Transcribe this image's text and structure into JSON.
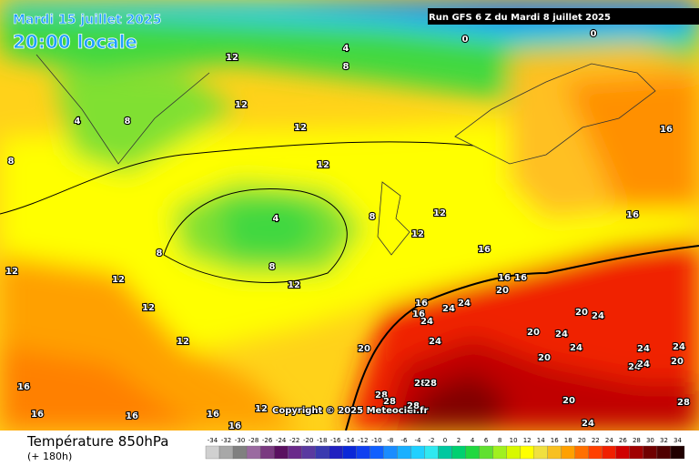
{
  "header": {
    "date": "Mardi 15 juillet 2025",
    "time": "20:00 locale",
    "run": "Run GFS 6 Z du Mardi 8 juillet 2025"
  },
  "copyright": "Copyright © 2025 Meteociel.fr",
  "footer": {
    "title": "Température 850hPa",
    "subtitle": "(+ 180h)"
  },
  "legend": {
    "ticks": [
      -34,
      -32,
      -30,
      -28,
      -26,
      -24,
      -22,
      -20,
      -18,
      -16,
      -14,
      -12,
      -10,
      -8,
      -6,
      -4,
      -2,
      0,
      2,
      4,
      6,
      8,
      10,
      12,
      14,
      16,
      18,
      20,
      22,
      24,
      26,
      28,
      30,
      32,
      34
    ],
    "colors": [
      "#d0d0d0",
      "#a8a8a8",
      "#808080",
      "#9a6aa0",
      "#7a3a80",
      "#5a1060",
      "#6a2a8a",
      "#5a3aa0",
      "#3a3ab0",
      "#2020c0",
      "#0a28d8",
      "#1040f0",
      "#1060ff",
      "#1a8cff",
      "#1ab0ff",
      "#20d0ff",
      "#30e8f0",
      "#00c8a0",
      "#00d070",
      "#20d840",
      "#60e030",
      "#a0f020",
      "#d8f800",
      "#ffff00",
      "#f0e040",
      "#f8c020",
      "#ffa000",
      "#ff7000",
      "#ff4000",
      "#f02000",
      "#d00000",
      "#a00000",
      "#700000",
      "#500000",
      "#200000"
    ]
  },
  "contour_labels": [
    0,
    0,
    4,
    8,
    12,
    12,
    12,
    12,
    8,
    4,
    8,
    8,
    4,
    8,
    12,
    12,
    12,
    12,
    12,
    16,
    16,
    16,
    16,
    16,
    12,
    8,
    12,
    12,
    16,
    16,
    16,
    20,
    16,
    16,
    24,
    24,
    24,
    20,
    24,
    20,
    20,
    24,
    24,
    24,
    24,
    24,
    24,
    24,
    20,
    20,
    28,
    28,
    28,
    28,
    28,
    20,
    24,
    28,
    16,
    16
  ]
}
